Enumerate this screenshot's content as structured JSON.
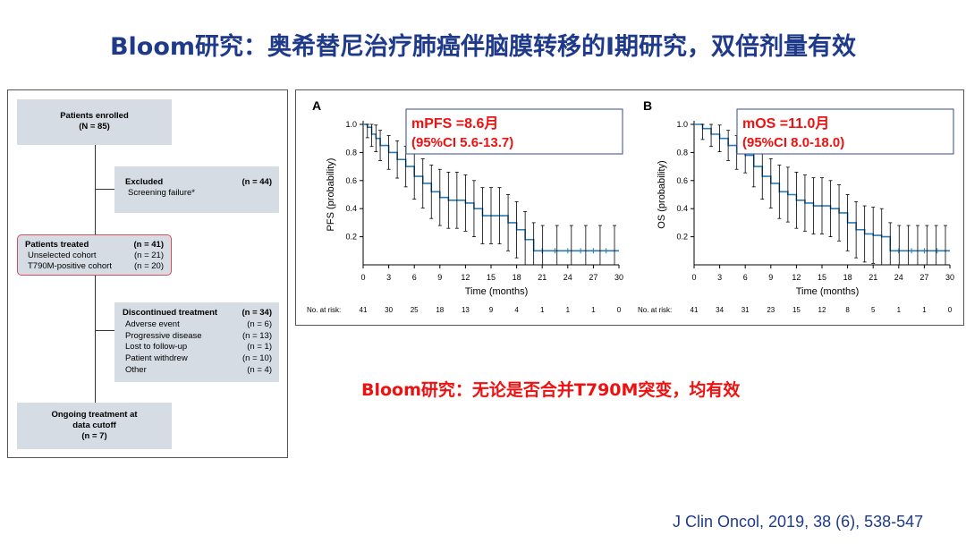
{
  "slide": {
    "title": "Bloom研究：奥希替尼治疗肺癌伴脑膜转移的I期研究，双倍剂量有效",
    "note": "Bloom研究：无论是否合并T790M突变，均有效",
    "citation": "J Clin Oncol, 2019, 38 (6), 538-547"
  },
  "flowchart": {
    "enrolled": {
      "label": "Patients enrolled",
      "n": "(N = 85)"
    },
    "excluded": {
      "label": "Excluded",
      "n": "(n = 44)",
      "reason": "Screening failure*"
    },
    "treated": {
      "label": "Patients treated",
      "n": "(n = 41)",
      "rows": [
        {
          "label": "Unselected cohort",
          "n": "(n = 21)"
        },
        {
          "label": "T790M-positive cohort",
          "n": "(n = 20)"
        }
      ]
    },
    "discontinued": {
      "label": "Discontinued treatment",
      "n": "(n = 34)",
      "rows": [
        {
          "label": "Adverse event",
          "n": "(n = 6)"
        },
        {
          "label": "Progressive disease",
          "n": "(n = 13)"
        },
        {
          "label": "Lost to follow-up",
          "n": "(n = 1)"
        },
        {
          "label": "Patient withdrew",
          "n": "(n = 10)"
        },
        {
          "label": "Other",
          "n": "(n = 4)"
        }
      ]
    },
    "ongoing": {
      "line1": "Ongoing treatment at",
      "line2": "data cutoff",
      "n": "(n = 7)"
    }
  },
  "chart_data": [
    {
      "type": "line",
      "panel": "A",
      "ylabel": "PFS (probability)",
      "xlabel": "Time (months)",
      "xticks": [
        0,
        3,
        6,
        9,
        12,
        15,
        18,
        21,
        24,
        27,
        30
      ],
      "yticks": [
        0.2,
        0.4,
        0.6,
        0.8,
        1.0
      ],
      "xlim": [
        0,
        30
      ],
      "ylim": [
        0,
        1.0
      ],
      "color": "#2a7ab5",
      "annotation": {
        "line1": "mPFS =8.6月",
        "line2": "(95%CI  5.6-13.7)",
        "color": "#ee1111"
      },
      "series": [
        {
          "x": [
            0,
            0.5,
            1,
            1.5,
            2,
            3,
            4,
            5,
            6,
            7,
            8,
            9,
            10,
            11,
            12,
            13,
            14,
            15,
            16,
            17,
            18,
            19,
            20,
            30
          ],
          "y": [
            1.0,
            0.98,
            0.93,
            0.9,
            0.85,
            0.8,
            0.75,
            0.7,
            0.63,
            0.58,
            0.52,
            0.48,
            0.46,
            0.46,
            0.44,
            0.4,
            0.35,
            0.35,
            0.35,
            0.3,
            0.25,
            0.18,
            0.1,
            0.1
          ]
        }
      ],
      "risk_label": "No. at risk:",
      "at_risk": [
        "41",
        "30",
        "25",
        "18",
        "13",
        "9",
        "4",
        "1",
        "1",
        "1",
        "0"
      ]
    },
    {
      "type": "line",
      "panel": "B",
      "ylabel": "OS (probability)",
      "xlabel": "Time (months)",
      "xticks": [
        0,
        3,
        6,
        9,
        12,
        15,
        18,
        21,
        24,
        27,
        30
      ],
      "yticks": [
        0.2,
        0.4,
        0.6,
        0.8,
        1.0
      ],
      "xlim": [
        0,
        30
      ],
      "ylim": [
        0,
        1.0
      ],
      "color": "#2a7ab5",
      "annotation": {
        "line1": "mOS =11.0月",
        "line2": "(95%CI  8.0-18.0)",
        "color": "#ee1111"
      },
      "series": [
        {
          "x": [
            0,
            1,
            2,
            3,
            4,
            5,
            6,
            7,
            8,
            9,
            10,
            11,
            12,
            13,
            14,
            15,
            16,
            17,
            18,
            19,
            20,
            21,
            22,
            23,
            30
          ],
          "y": [
            1.0,
            0.97,
            0.93,
            0.9,
            0.85,
            0.8,
            0.78,
            0.7,
            0.63,
            0.58,
            0.52,
            0.5,
            0.46,
            0.44,
            0.42,
            0.42,
            0.4,
            0.37,
            0.3,
            0.25,
            0.22,
            0.21,
            0.2,
            0.1,
            0.1
          ]
        }
      ],
      "risk_label": "No. at risk:",
      "at_risk": [
        "41",
        "34",
        "31",
        "23",
        "15",
        "12",
        "8",
        "5",
        "1",
        "1",
        "0"
      ]
    }
  ]
}
